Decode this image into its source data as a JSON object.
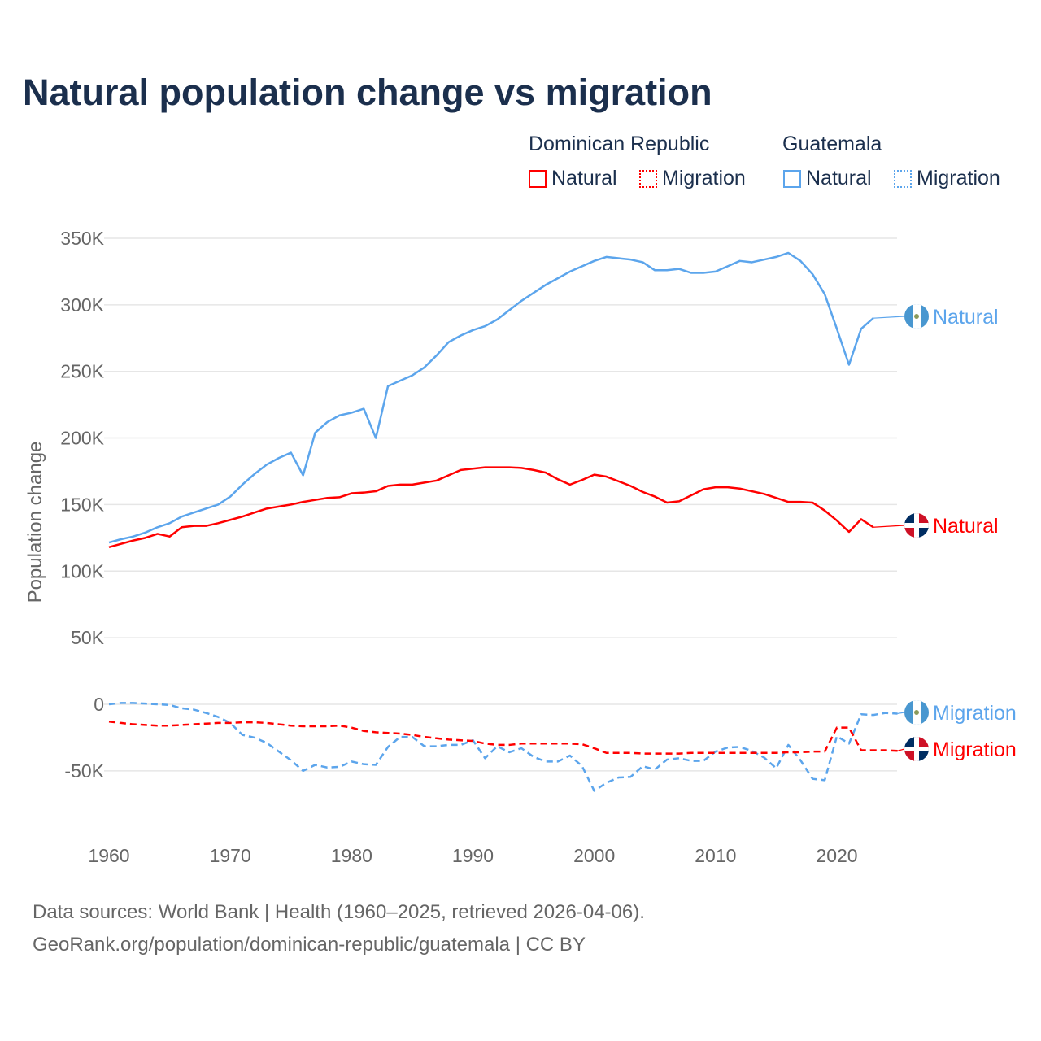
{
  "title": "Natural population change vs migration",
  "legend": {
    "groups": [
      {
        "name": "Dominican Republic",
        "items": [
          {
            "label": "Natural",
            "style": "solid",
            "color": "#ff0000"
          },
          {
            "label": "Migration",
            "style": "dotted",
            "color": "#ff0000"
          }
        ]
      },
      {
        "name": "Guatemala",
        "items": [
          {
            "label": "Natural",
            "style": "solid",
            "color": "#5ca5ec"
          },
          {
            "label": "Migration",
            "style": "dotted",
            "color": "#5ca5ec"
          }
        ]
      }
    ]
  },
  "footer": {
    "line1": "Data sources: World Bank | Health (1960–2025, retrieved 2026-04-06).",
    "line2": "GeoRank.org/population/dominican-republic/guatemala | CC BY"
  },
  "chart_data": {
    "type": "line",
    "title": "Natural population change vs migration",
    "xlabel": "",
    "ylabel": "Population change",
    "xlim": [
      1960,
      2025
    ],
    "ylim": [
      -85000,
      350000
    ],
    "xticks": [
      1960,
      1970,
      1980,
      1990,
      2000,
      2010,
      2020
    ],
    "yticks": [
      {
        "v": 350000,
        "label": "350K"
      },
      {
        "v": 300000,
        "label": "300K"
      },
      {
        "v": 250000,
        "label": "250K"
      },
      {
        "v": 200000,
        "label": "200K"
      },
      {
        "v": 150000,
        "label": "150K"
      },
      {
        "v": 100000,
        "label": "100K"
      },
      {
        "v": 50000,
        "label": "50K"
      },
      {
        "v": 0,
        "label": "0"
      },
      {
        "v": -50000,
        "label": "-50K"
      }
    ],
    "grid": true,
    "series": [
      {
        "name": "Guatemala Natural",
        "label": "Natural",
        "country": "gt",
        "color": "#5ca5ec",
        "dash": false,
        "start": 1960,
        "values": [
          121.5,
          124,
          126,
          129,
          133,
          136,
          141,
          144,
          147,
          150,
          156,
          165,
          173,
          180,
          185,
          189,
          172,
          204,
          212,
          217,
          219,
          222,
          200,
          239,
          243,
          247,
          253,
          262,
          272,
          277,
          281,
          284,
          289,
          296,
          303,
          309,
          315,
          320,
          325,
          329,
          333,
          336,
          335,
          334,
          332,
          326,
          326,
          327,
          324,
          324,
          325,
          329,
          333,
          332,
          334,
          336,
          339,
          333,
          323,
          308,
          282,
          255,
          282,
          290
        ]
      },
      {
        "name": "Dominican Republic Natural",
        "label": "Natural",
        "country": "do",
        "color": "#ff0000",
        "dash": false,
        "start": 1960,
        "values": [
          118,
          120.5,
          123,
          125,
          128,
          126,
          133,
          134,
          134,
          136,
          138.5,
          141,
          144,
          147,
          148.5,
          150,
          152,
          153.5,
          155,
          155.5,
          158.5,
          159,
          160,
          164,
          165,
          165,
          166.5,
          168,
          172,
          176,
          177,
          178,
          178,
          178,
          177.5,
          176,
          174,
          169,
          165,
          168.5,
          172.5,
          171,
          167.5,
          164,
          159.5,
          156,
          151.5,
          152.5,
          157,
          161.5,
          163,
          163,
          162,
          160,
          158,
          155,
          152,
          152,
          151.5,
          145.5,
          138,
          129.5,
          139,
          133
        ]
      },
      {
        "name": "Guatemala Migration",
        "label": "Migration",
        "country": "gt",
        "color": "#5ca5ec",
        "dash": true,
        "start": 1960,
        "values": [
          0,
          1,
          1,
          0.5,
          0,
          -0.5,
          -3,
          -4,
          -6.5,
          -9.5,
          -14,
          -23,
          -25,
          -29,
          -35.5,
          -42,
          -50,
          -45.5,
          -47.5,
          -47,
          -43,
          -45,
          -45.5,
          -32,
          -24.5,
          -24.5,
          -31.5,
          -31.5,
          -30.5,
          -30.5,
          -27,
          -40.5,
          -31.5,
          -36,
          -33,
          -39.5,
          -43,
          -43,
          -38.5,
          -46.5,
          -65,
          -59,
          -55,
          -54.5,
          -46.5,
          -49,
          -41.5,
          -40.5,
          -42.5,
          -42.5,
          -35.5,
          -32.5,
          -32,
          -35,
          -40,
          -48,
          -30.5,
          -42,
          -56,
          -57,
          -24,
          -29.5,
          -7.5,
          -8,
          -6.5,
          -7
        ]
      },
      {
        "name": "Dominican Republic Migration",
        "label": "Migration",
        "country": "do",
        "color": "#ff0000",
        "dash": true,
        "start": 1960,
        "values": [
          -13,
          -14,
          -15,
          -15.5,
          -16,
          -16,
          -15.5,
          -15,
          -14.5,
          -14,
          -14,
          -13.5,
          -13.5,
          -14,
          -15,
          -16,
          -16.5,
          -16.5,
          -16.5,
          -16,
          -17.5,
          -20,
          -21,
          -21.5,
          -22,
          -23,
          -24.5,
          -25.5,
          -26.5,
          -27,
          -27.5,
          -29.5,
          -30.5,
          -30.5,
          -29.5,
          -29.5,
          -29.5,
          -29.5,
          -29.5,
          -30,
          -33,
          -36.5,
          -36.5,
          -36.5,
          -37,
          -37,
          -37,
          -37,
          -36.5,
          -36.5,
          -36.5,
          -36.5,
          -36.5,
          -36.5,
          -36.5,
          -36.5,
          -36,
          -36,
          -35.5,
          -35.5,
          -17.5,
          -17.5,
          -34.5,
          -34.5,
          -34.5,
          -35
        ]
      }
    ],
    "value_unit": "thousands"
  }
}
